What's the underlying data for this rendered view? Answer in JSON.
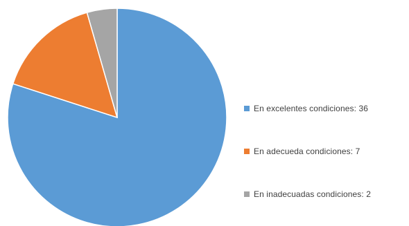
{
  "chart_data": {
    "type": "pie",
    "title": "",
    "categories": [
      "En excelentes condiciones: 36",
      "En adecueda condiciones:  7",
      "En inadecuadas condiciones: 2"
    ],
    "values": [
      36,
      7,
      2
    ],
    "colors": [
      "#5b9bd5",
      "#ed7d31",
      "#a5a5a5"
    ],
    "start_angle_deg": 0,
    "direction": "clockwise",
    "legend_position": "right"
  }
}
